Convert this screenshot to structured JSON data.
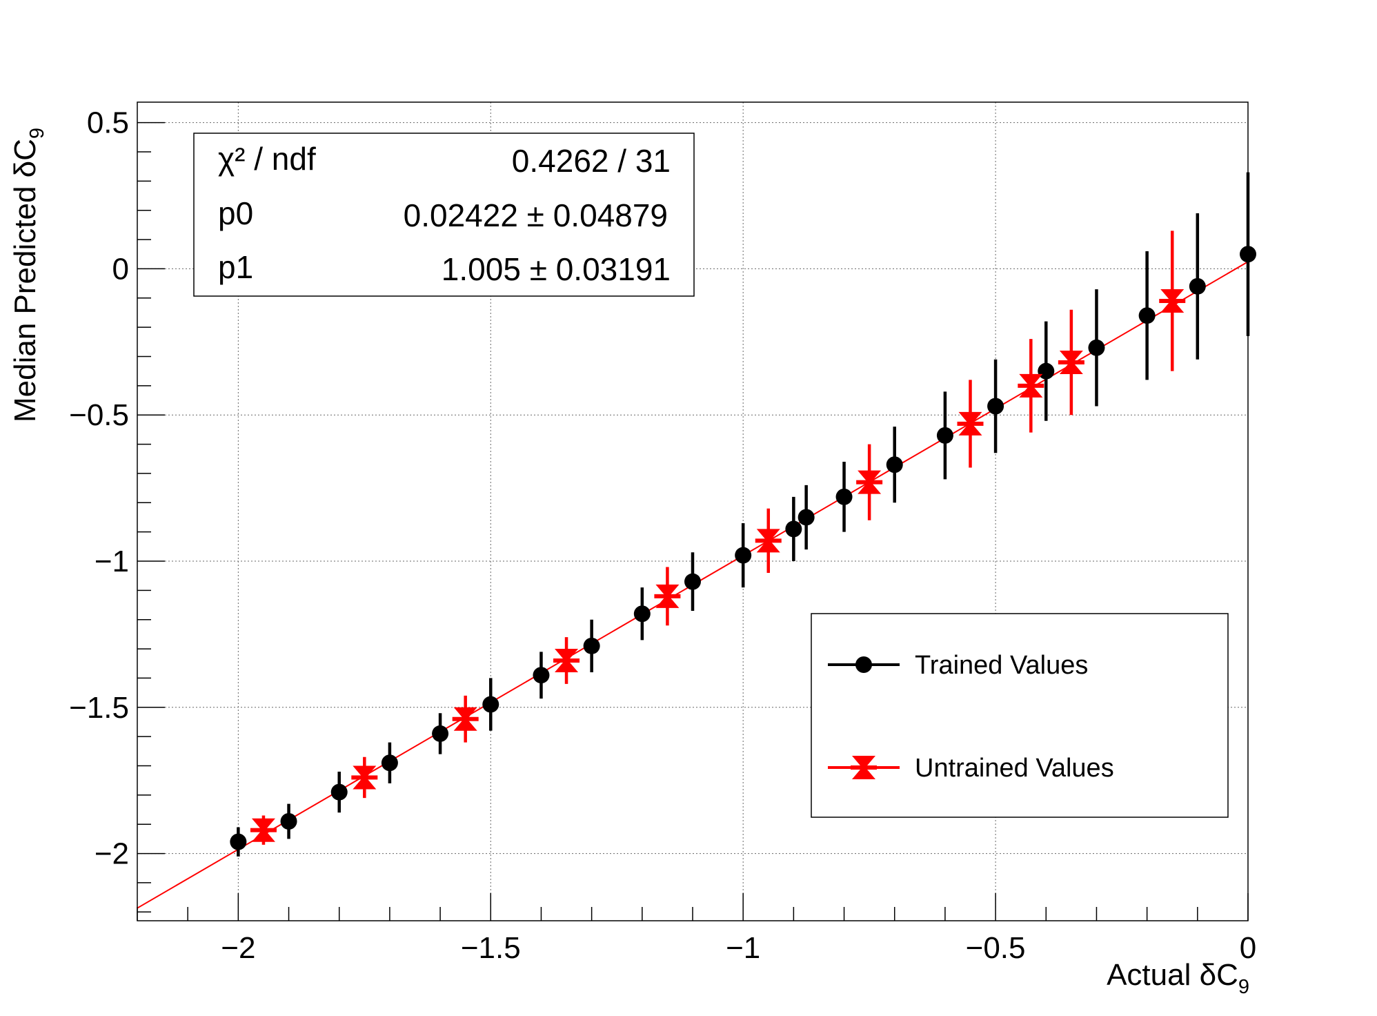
{
  "chart_data": {
    "type": "scatter",
    "title": "",
    "xlabel": "Actual δC",
    "xlabel_sub": "9",
    "ylabel": "Median Predicted  δC",
    "ylabel_sub": "9",
    "xlim": [
      -2.2,
      0.0
    ],
    "ylim": [
      -2.23,
      0.57
    ],
    "xticks": [
      {
        "value": -2,
        "label": "−2"
      },
      {
        "value": -1.5,
        "label": "−1.5"
      },
      {
        "value": -1,
        "label": "−1"
      },
      {
        "value": -0.5,
        "label": "−0.5"
      },
      {
        "value": 0,
        "label": "0"
      }
    ],
    "yticks": [
      {
        "value": 0.5,
        "label": "0.5"
      },
      {
        "value": 0,
        "label": "0"
      },
      {
        "value": -0.5,
        "label": "−0.5"
      },
      {
        "value": -1,
        "label": "−1"
      },
      {
        "value": -1.5,
        "label": "−1.5"
      },
      {
        "value": -2,
        "label": "−2"
      }
    ],
    "grid": true,
    "series": [
      {
        "name": "Trained Values",
        "color": "#000000",
        "marker": "circle",
        "points": [
          {
            "x": -2.0,
            "y": -1.96,
            "err": 0.05
          },
          {
            "x": -1.9,
            "y": -1.89,
            "err": 0.06
          },
          {
            "x": -1.8,
            "y": -1.79,
            "err": 0.07
          },
          {
            "x": -1.7,
            "y": -1.69,
            "err": 0.07
          },
          {
            "x": -1.6,
            "y": -1.59,
            "err": 0.07
          },
          {
            "x": -1.5,
            "y": -1.49,
            "err": 0.09
          },
          {
            "x": -1.4,
            "y": -1.39,
            "err": 0.08
          },
          {
            "x": -1.3,
            "y": -1.29,
            "err": 0.09
          },
          {
            "x": -1.2,
            "y": -1.18,
            "err": 0.09
          },
          {
            "x": -1.1,
            "y": -1.07,
            "err": 0.1
          },
          {
            "x": -1.0,
            "y": -0.98,
            "err": 0.11
          },
          {
            "x": -0.9,
            "y": -0.89,
            "err": 0.11
          },
          {
            "x": -0.875,
            "y": -0.85,
            "err": 0.11
          },
          {
            "x": -0.8,
            "y": -0.78,
            "err": 0.12
          },
          {
            "x": -0.7,
            "y": -0.67,
            "err": 0.13
          },
          {
            "x": -0.6,
            "y": -0.57,
            "err": 0.15
          },
          {
            "x": -0.5,
            "y": -0.47,
            "err": 0.16
          },
          {
            "x": -0.4,
            "y": -0.35,
            "err": 0.17
          },
          {
            "x": -0.3,
            "y": -0.27,
            "err": 0.2
          },
          {
            "x": -0.2,
            "y": -0.16,
            "err": 0.22
          },
          {
            "x": -0.1,
            "y": -0.06,
            "err": 0.25
          },
          {
            "x": 0.0,
            "y": 0.05,
            "err": 0.28
          }
        ]
      },
      {
        "name": "Untrained Values",
        "color": "#ff0000",
        "marker": "star",
        "points": [
          {
            "x": -1.95,
            "y": -1.92,
            "err": 0.05
          },
          {
            "x": -1.75,
            "y": -1.74,
            "err": 0.07
          },
          {
            "x": -1.55,
            "y": -1.54,
            "err": 0.08
          },
          {
            "x": -1.35,
            "y": -1.34,
            "err": 0.08
          },
          {
            "x": -1.15,
            "y": -1.12,
            "err": 0.1
          },
          {
            "x": -0.95,
            "y": -0.93,
            "err": 0.11
          },
          {
            "x": -0.75,
            "y": -0.73,
            "err": 0.13
          },
          {
            "x": -0.55,
            "y": -0.53,
            "err": 0.15
          },
          {
            "x": -0.43,
            "y": -0.4,
            "err": 0.16
          },
          {
            "x": -0.35,
            "y": -0.32,
            "err": 0.18
          },
          {
            "x": -0.15,
            "y": -0.11,
            "err": 0.24
          }
        ]
      }
    ],
    "fit": {
      "color": "#ff0000",
      "x_range": [
        -2.2,
        0.0
      ],
      "p0": 0.02422,
      "p1": 1.005
    },
    "stats_box": {
      "rows": [
        {
          "name": "χ² / ndf",
          "value": "0.4262 / 31"
        },
        {
          "name": "p0",
          "value": "0.02422 ± 0.04879"
        },
        {
          "name": "p1",
          "value": "1.005 ± 0.03191"
        }
      ]
    },
    "legend": {
      "placement": "bottom-right",
      "entries": [
        "Trained Values",
        "Untrained Values"
      ]
    }
  }
}
